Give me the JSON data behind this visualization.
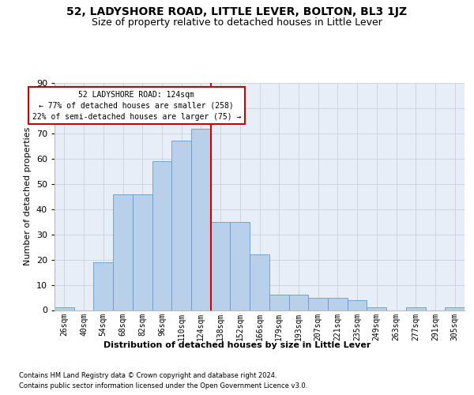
{
  "title": "52, LADYSHORE ROAD, LITTLE LEVER, BOLTON, BL3 1JZ",
  "subtitle": "Size of property relative to detached houses in Little Lever",
  "xlabel": "Distribution of detached houses by size in Little Lever",
  "ylabel": "Number of detached properties",
  "footer_line1": "Contains HM Land Registry data © Crown copyright and database right 2024.",
  "footer_line2": "Contains public sector information licensed under the Open Government Licence v3.0.",
  "bar_labels": [
    "26sqm",
    "40sqm",
    "54sqm",
    "68sqm",
    "82sqm",
    "96sqm",
    "110sqm",
    "124sqm",
    "138sqm",
    "152sqm",
    "166sqm",
    "179sqm",
    "193sqm",
    "207sqm",
    "221sqm",
    "235sqm",
    "249sqm",
    "263sqm",
    "277sqm",
    "291sqm",
    "305sqm"
  ],
  "bar_heights": [
    1,
    0,
    19,
    46,
    46,
    59,
    67,
    72,
    35,
    35,
    22,
    6,
    6,
    5,
    5,
    4,
    1,
    0,
    1,
    0,
    1
  ],
  "bar_color": "#b8d0ea",
  "bar_edge_color": "#6699cc",
  "annotation_text_line1": "52 LADYSHORE ROAD: 124sqm",
  "annotation_text_line2": "← 77% of detached houses are smaller (258)",
  "annotation_text_line3": "22% of semi-detached houses are larger (75) →",
  "annotation_box_color": "#ffffff",
  "annotation_box_edge_color": "#cc0000",
  "vline_color": "#cc0000",
  "grid_color": "#c8cfe0",
  "ylim": [
    0,
    90
  ],
  "yticks": [
    0,
    10,
    20,
    30,
    40,
    50,
    60,
    70,
    80,
    90
  ],
  "bg_color": "#e8eef8",
  "fig_bg_color": "#ffffff",
  "title_fontsize": 10,
  "subtitle_fontsize": 9,
  "xlabel_fontsize": 8,
  "ylabel_fontsize": 8,
  "tick_fontsize": 7,
  "footer_fontsize": 6,
  "annot_fontsize": 7
}
